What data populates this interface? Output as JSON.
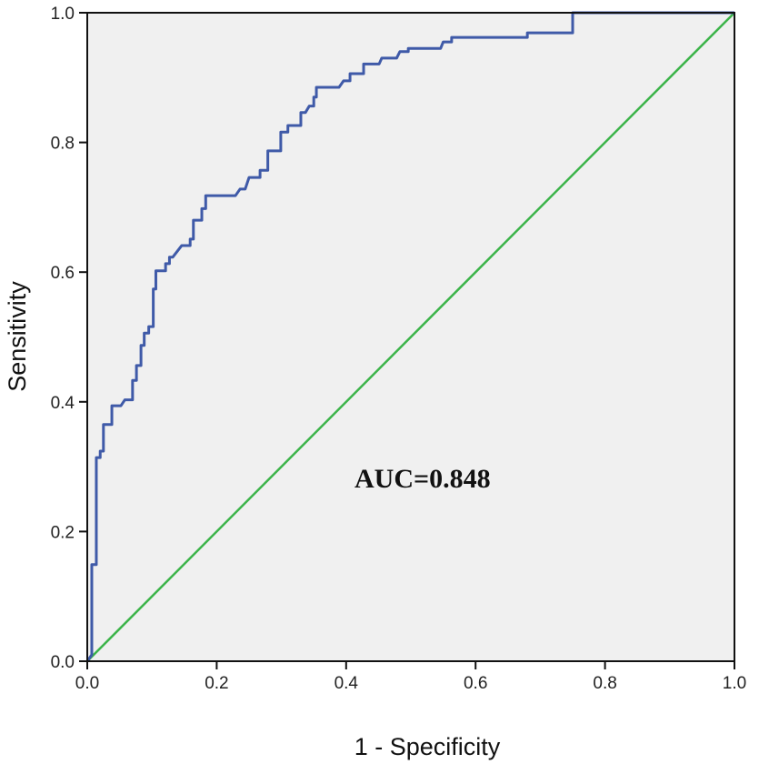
{
  "chart_data": {
    "type": "line",
    "title": "",
    "xlabel": "1 - Specificity",
    "ylabel": "Sensitivity",
    "xlim": [
      0,
      1
    ],
    "ylim": [
      0,
      1
    ],
    "xticks": [
      "0.0",
      "0.2",
      "0.4",
      "0.6",
      "0.8",
      "1.0"
    ],
    "yticks": [
      "0.0",
      "0.2",
      "0.4",
      "0.6",
      "0.8",
      "1.0"
    ],
    "grid": false,
    "annotation": "AUC=0.848",
    "colors": {
      "roc": "#3f5aa8",
      "reference": "#3cb44a",
      "background": "#f0f0f0"
    },
    "series": [
      {
        "name": "ROC curve",
        "x": [
          0,
          0.007,
          0.007,
          0.014,
          0.014,
          0.02,
          0.02,
          0.025,
          0.025,
          0.038,
          0.038,
          0.052,
          0.058,
          0.07,
          0.07,
          0.076,
          0.076,
          0.083,
          0.083,
          0.088,
          0.088,
          0.095,
          0.095,
          0.102,
          0.102,
          0.106,
          0.106,
          0.121,
          0.121,
          0.127,
          0.127,
          0.132,
          0.146,
          0.159,
          0.159,
          0.164,
          0.164,
          0.177,
          0.177,
          0.183,
          0.183,
          0.229,
          0.236,
          0.244,
          0.25,
          0.267,
          0.267,
          0.279,
          0.279,
          0.299,
          0.299,
          0.31,
          0.31,
          0.33,
          0.33,
          0.337,
          0.343,
          0.35,
          0.35,
          0.354,
          0.354,
          0.389,
          0.396,
          0.406,
          0.406,
          0.427,
          0.427,
          0.451,
          0.455,
          0.478,
          0.483,
          0.496,
          0.496,
          0.546,
          0.55,
          0.563,
          0.563,
          0.68,
          0.68,
          0.75,
          0.75,
          1
        ],
        "y": [
          0,
          0.01,
          0.149,
          0.149,
          0.314,
          0.314,
          0.324,
          0.324,
          0.365,
          0.365,
          0.394,
          0.394,
          0.403,
          0.403,
          0.433,
          0.433,
          0.456,
          0.456,
          0.487,
          0.487,
          0.506,
          0.506,
          0.516,
          0.516,
          0.574,
          0.574,
          0.602,
          0.602,
          0.613,
          0.613,
          0.623,
          0.623,
          0.641,
          0.641,
          0.651,
          0.651,
          0.68,
          0.68,
          0.698,
          0.698,
          0.718,
          0.718,
          0.728,
          0.728,
          0.746,
          0.746,
          0.757,
          0.757,
          0.787,
          0.787,
          0.816,
          0.816,
          0.826,
          0.826,
          0.846,
          0.846,
          0.856,
          0.856,
          0.87,
          0.87,
          0.885,
          0.885,
          0.895,
          0.895,
          0.906,
          0.906,
          0.921,
          0.921,
          0.93,
          0.93,
          0.94,
          0.94,
          0.945,
          0.945,
          0.955,
          0.955,
          0.962,
          0.962,
          0.969,
          0.969,
          1,
          1
        ]
      },
      {
        "name": "Reference line",
        "x": [
          0,
          1
        ],
        "y": [
          0,
          1
        ]
      }
    ]
  }
}
